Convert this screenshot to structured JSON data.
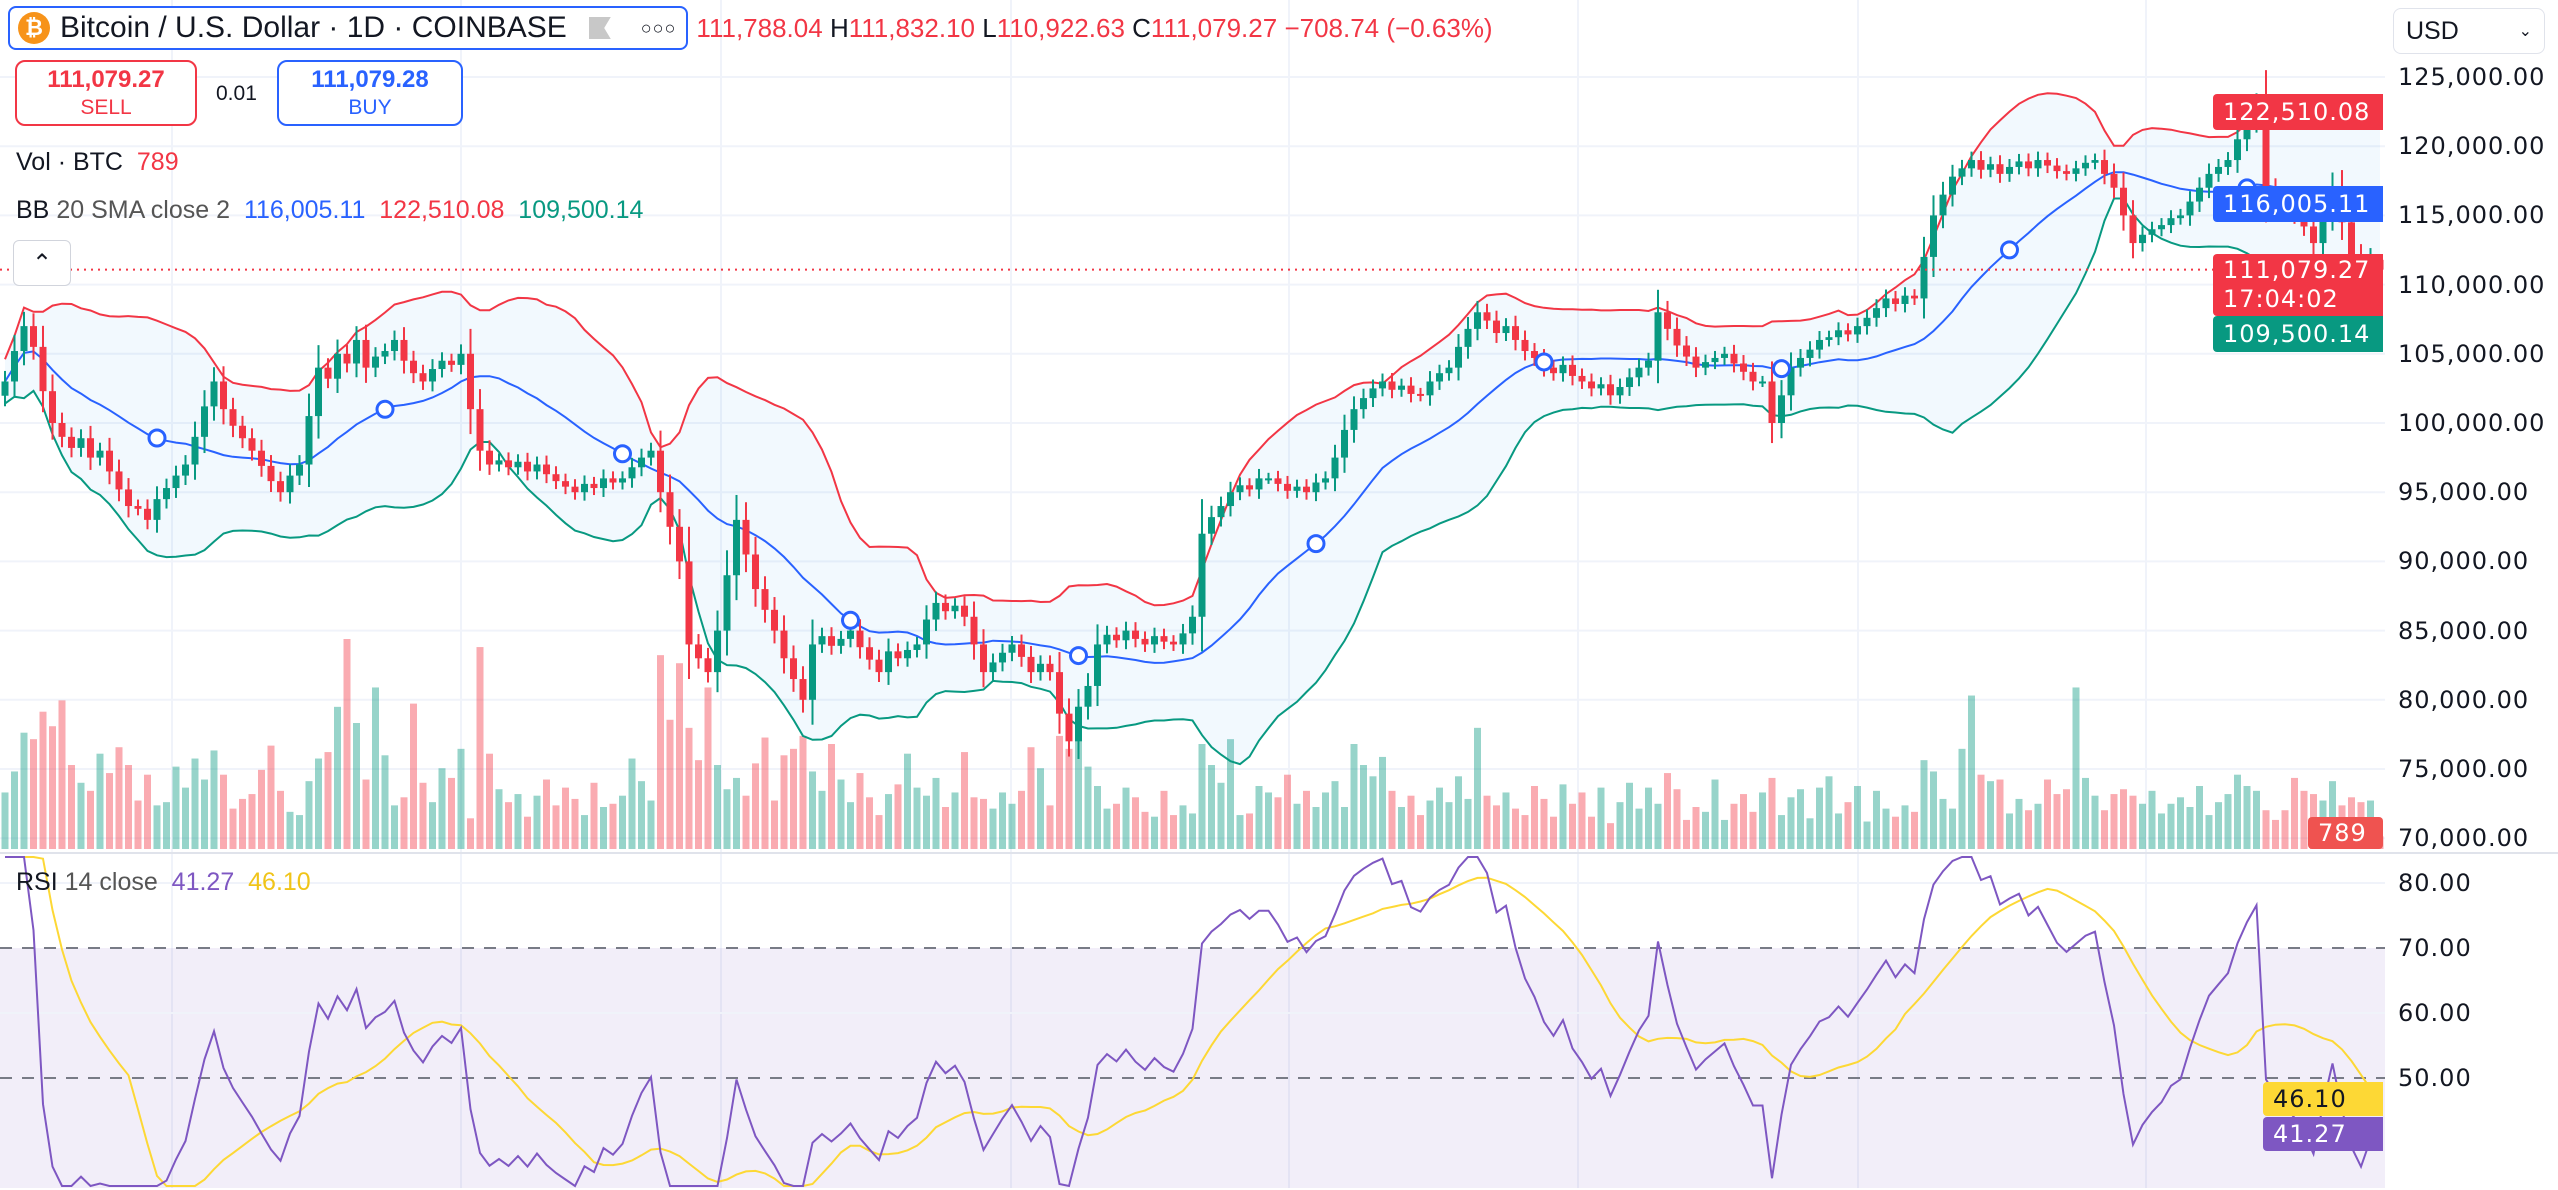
{
  "header": {
    "symbol_title": "Bitcoin / U.S. Dollar · 1D · COINBASE",
    "open_value": "111,788.04",
    "high_label": "H",
    "high_value": "111,832.10",
    "low_label": "L",
    "low_value": "110,922.63",
    "close_label": "C",
    "close_value": "111,079.27",
    "change": "−708.74 (−0.63%)"
  },
  "trade": {
    "sell_price": "111,079.27",
    "sell_label": "SELL",
    "spread": "0.01",
    "buy_price": "111,079.28",
    "buy_label": "BUY"
  },
  "legends": {
    "vol_label": "Vol · BTC",
    "vol_value": "789",
    "bb_label": "BB",
    "bb_params": "20 SMA close 2",
    "bb_basis": "116,005.11",
    "bb_upper": "122,510.08",
    "bb_lower": "109,500.14",
    "rsi_label": "RSI",
    "rsi_params": "14 close",
    "rsi_value": "41.27",
    "rsi_ma_value": "46.10"
  },
  "currency": "USD",
  "price_axis": [
    "125,000.00",
    "120,000.00",
    "115,000.00",
    "110,000.00",
    "105,000.00",
    "100,000.00",
    "95,000.00",
    "90,000.00",
    "85,000.00",
    "80,000.00",
    "75,000.00",
    "70,000.00"
  ],
  "rsi_axis": [
    "80.00",
    "70.00",
    "60.00",
    "50.00"
  ],
  "tags": {
    "bb_upper": "122,510.08",
    "bb_basis": "116,005.11",
    "last_price": "111,079.27",
    "countdown": "17:04:02",
    "bb_lower": "109,500.14",
    "volume": "789",
    "rsi_ma": "46.10",
    "rsi": "41.27"
  },
  "colors": {
    "up": "#089981",
    "down": "#f23645",
    "bb_upper": "#f23645",
    "bb_basis": "#2962ff",
    "bb_lower": "#089981",
    "rsi": "#7e57c2",
    "rsi_ma": "#fdd835"
  },
  "chart_data": {
    "type": "candlestick",
    "ylim": [
      70000,
      125000
    ],
    "rsi_ylim": [
      40,
      80
    ],
    "rsi_levels": [
      70,
      50
    ],
    "last_candle": {
      "open": 111788.04,
      "high": 111832.1,
      "low": 110922.63,
      "close": 111079.27
    },
    "closes": [
      103000,
      105200,
      107000,
      105500,
      102300,
      100000,
      99000,
      98200,
      98900,
      97500,
      98000,
      96500,
      95200,
      94000,
      93800,
      93000,
      94500,
      95300,
      96200,
      97000,
      99000,
      101200,
      103000,
      101000,
      99800,
      98900,
      98000,
      96900,
      95800,
      95000,
      96200,
      97000,
      100500,
      104000,
      103200,
      105000,
      104300,
      106000,
      104000,
      104800,
      105200,
      106000,
      104500,
      103600,
      103000,
      103900,
      104500,
      104200,
      105000,
      101000,
      98000,
      97000,
      97300,
      96800,
      97200,
      96500,
      97000,
      96300,
      95800,
      95400,
      95000,
      95600,
      95300,
      96000,
      95700,
      96000,
      96800,
      97500,
      98000,
      95000,
      92500,
      90000,
      84000,
      83000,
      82000,
      85000,
      89000,
      93000,
      90500,
      88000,
      86500,
      85000,
      83000,
      81500,
      80000,
      84000,
      84600,
      83900,
      84400,
      85000,
      83800,
      82900,
      82000,
      83500,
      83000,
      83600,
      84000,
      85800,
      87000,
      86400,
      86800,
      86000,
      84000,
      82000,
      82700,
      83400,
      84000,
      83100,
      82000,
      82600,
      82000,
      79000,
      77000,
      79500,
      81000,
      84000,
      84700,
      84300,
      85000,
      84400,
      84000,
      84600,
      84200,
      84000,
      84800,
      86000,
      92000,
      93200,
      94000,
      95000,
      95500,
      95200,
      96000,
      96000,
      95600,
      95100,
      95400,
      95000,
      95700,
      96000,
      97500,
      99500,
      101000,
      101800,
      102500,
      103000,
      102400,
      102700,
      102100,
      102000,
      103000,
      103600,
      104000,
      105500,
      106800,
      108000,
      107400,
      106500,
      107000,
      106000,
      105200,
      104700,
      104000,
      103600,
      104200,
      103400,
      103000,
      102500,
      102800,
      102000,
      102600,
      103300,
      104000,
      104500,
      108000,
      106800,
      105600,
      104800,
      104000,
      104400,
      104700,
      105000,
      104300,
      103700,
      103000,
      103000,
      100000,
      102000,
      104000,
      104700,
      105300,
      106000,
      106200,
      106700,
      106400,
      107000,
      107600,
      108300,
      109000,
      108600,
      109200,
      109000,
      112000,
      115000,
      116500,
      117800,
      118400,
      119000,
      118300,
      118700,
      118000,
      118500,
      118900,
      118400,
      119000,
      118600,
      118200,
      118000,
      118400,
      118800,
      119000,
      118000,
      117000,
      115000,
      113000,
      113600,
      114000,
      114300,
      114800,
      115000,
      116000,
      117000,
      118000,
      118500,
      119000,
      120500,
      121800,
      123000,
      117000,
      116200,
      115600,
      115000,
      114200,
      113000,
      115000,
      117000,
      114500,
      112000,
      110500,
      111788,
      111079.27
    ],
    "volumes": [
      3500,
      4800,
      7200,
      6800,
      8500,
      7600,
      9200,
      5200,
      4100,
      3600,
      5900,
      4700,
      6300,
      5200,
      3000,
      4600,
      2700,
      2900,
      5100,
      3800,
      5600,
      4300,
      6100,
      4600,
      2500,
      3100,
      3400,
      4900,
      6400,
      3600,
      2300,
      2100,
      4200,
      5600,
      6000,
      8800,
      13000,
      7800,
      4300,
      10000,
      5800,
      2700,
      3200,
      9000,
      4100,
      2900,
      5000,
      4400,
      6200,
      1900,
      12500,
      5900,
      3700,
      2900,
      3400,
      2000,
      3300,
      4300,
      2700,
      3800,
      3100,
      2100,
      4100,
      2600,
      2800,
      3300,
      5600,
      4200,
      3000,
      12000,
      8000,
      11500,
      7500,
      5500,
      10000,
      5200,
      3700,
      4400,
      3300,
      5300,
      6900,
      3000,
      5800,
      6200,
      7000,
      4800,
      3600,
      6500,
      4300,
      2900,
      4700,
      3200,
      2100,
      3400,
      4000,
      5900,
      3800,
      3300,
      4400,
      2600,
      3500,
      6000,
      3200,
      3100,
      2500,
      3500,
      2800,
      3600,
      6300,
      5000,
      2700,
      7000,
      6200,
      6800,
      5100,
      3900,
      2500,
      2800,
      3800,
      3200,
      2300,
      2000,
      3600,
      2100,
      2700,
      2200,
      6500,
      5200,
      4100,
      6800,
      2100,
      2200,
      3900,
      3500,
      3200,
      4600,
      2800,
      3600,
      2600,
      3500,
      4200,
      2600,
      6500,
      5200,
      4500,
      5700,
      3600,
      2600,
      3300,
      2100,
      3000,
      3800,
      2900,
      4500,
      3100,
      7500,
      3300,
      2700,
      3500,
      2500,
      2100,
      3900,
      3100,
      2000,
      4000,
      2800,
      3500,
      2000,
      3800,
      1600,
      2900,
      4100,
      2500,
      3800,
      2800,
      4700,
      3700,
      1800,
      2600,
      2300,
      4300,
      1800,
      2800,
      3400,
      2300,
      3500,
      4400,
      2100,
      3200,
      3700,
      1900,
      3800,
      4500,
      2200,
      2900,
      3900,
      1700,
      3600,
      2500,
      2000,
      2700,
      2300,
      5500,
      4800,
      3100,
      2500,
      6200,
      9500,
      4600,
      4200,
      4300,
      2200,
      3100,
      2400,
      2800,
      4300,
      3400,
      3700,
      10000,
      4400,
      3300,
      2400,
      3400,
      3700,
      3300,
      2800,
      3600,
      2200,
      2800,
      3200,
      2600,
      3900,
      2100,
      2900,
      3400,
      4600,
      3900,
      3600,
      2400,
      1800,
      2400,
      4400,
      3600,
      3400,
      3000,
      4200,
      2700,
      3200,
      2900,
      3000,
      789
    ],
    "event_markers": [
      16,
      40,
      65,
      89,
      113,
      138,
      162,
      187,
      211,
      236
    ]
  }
}
